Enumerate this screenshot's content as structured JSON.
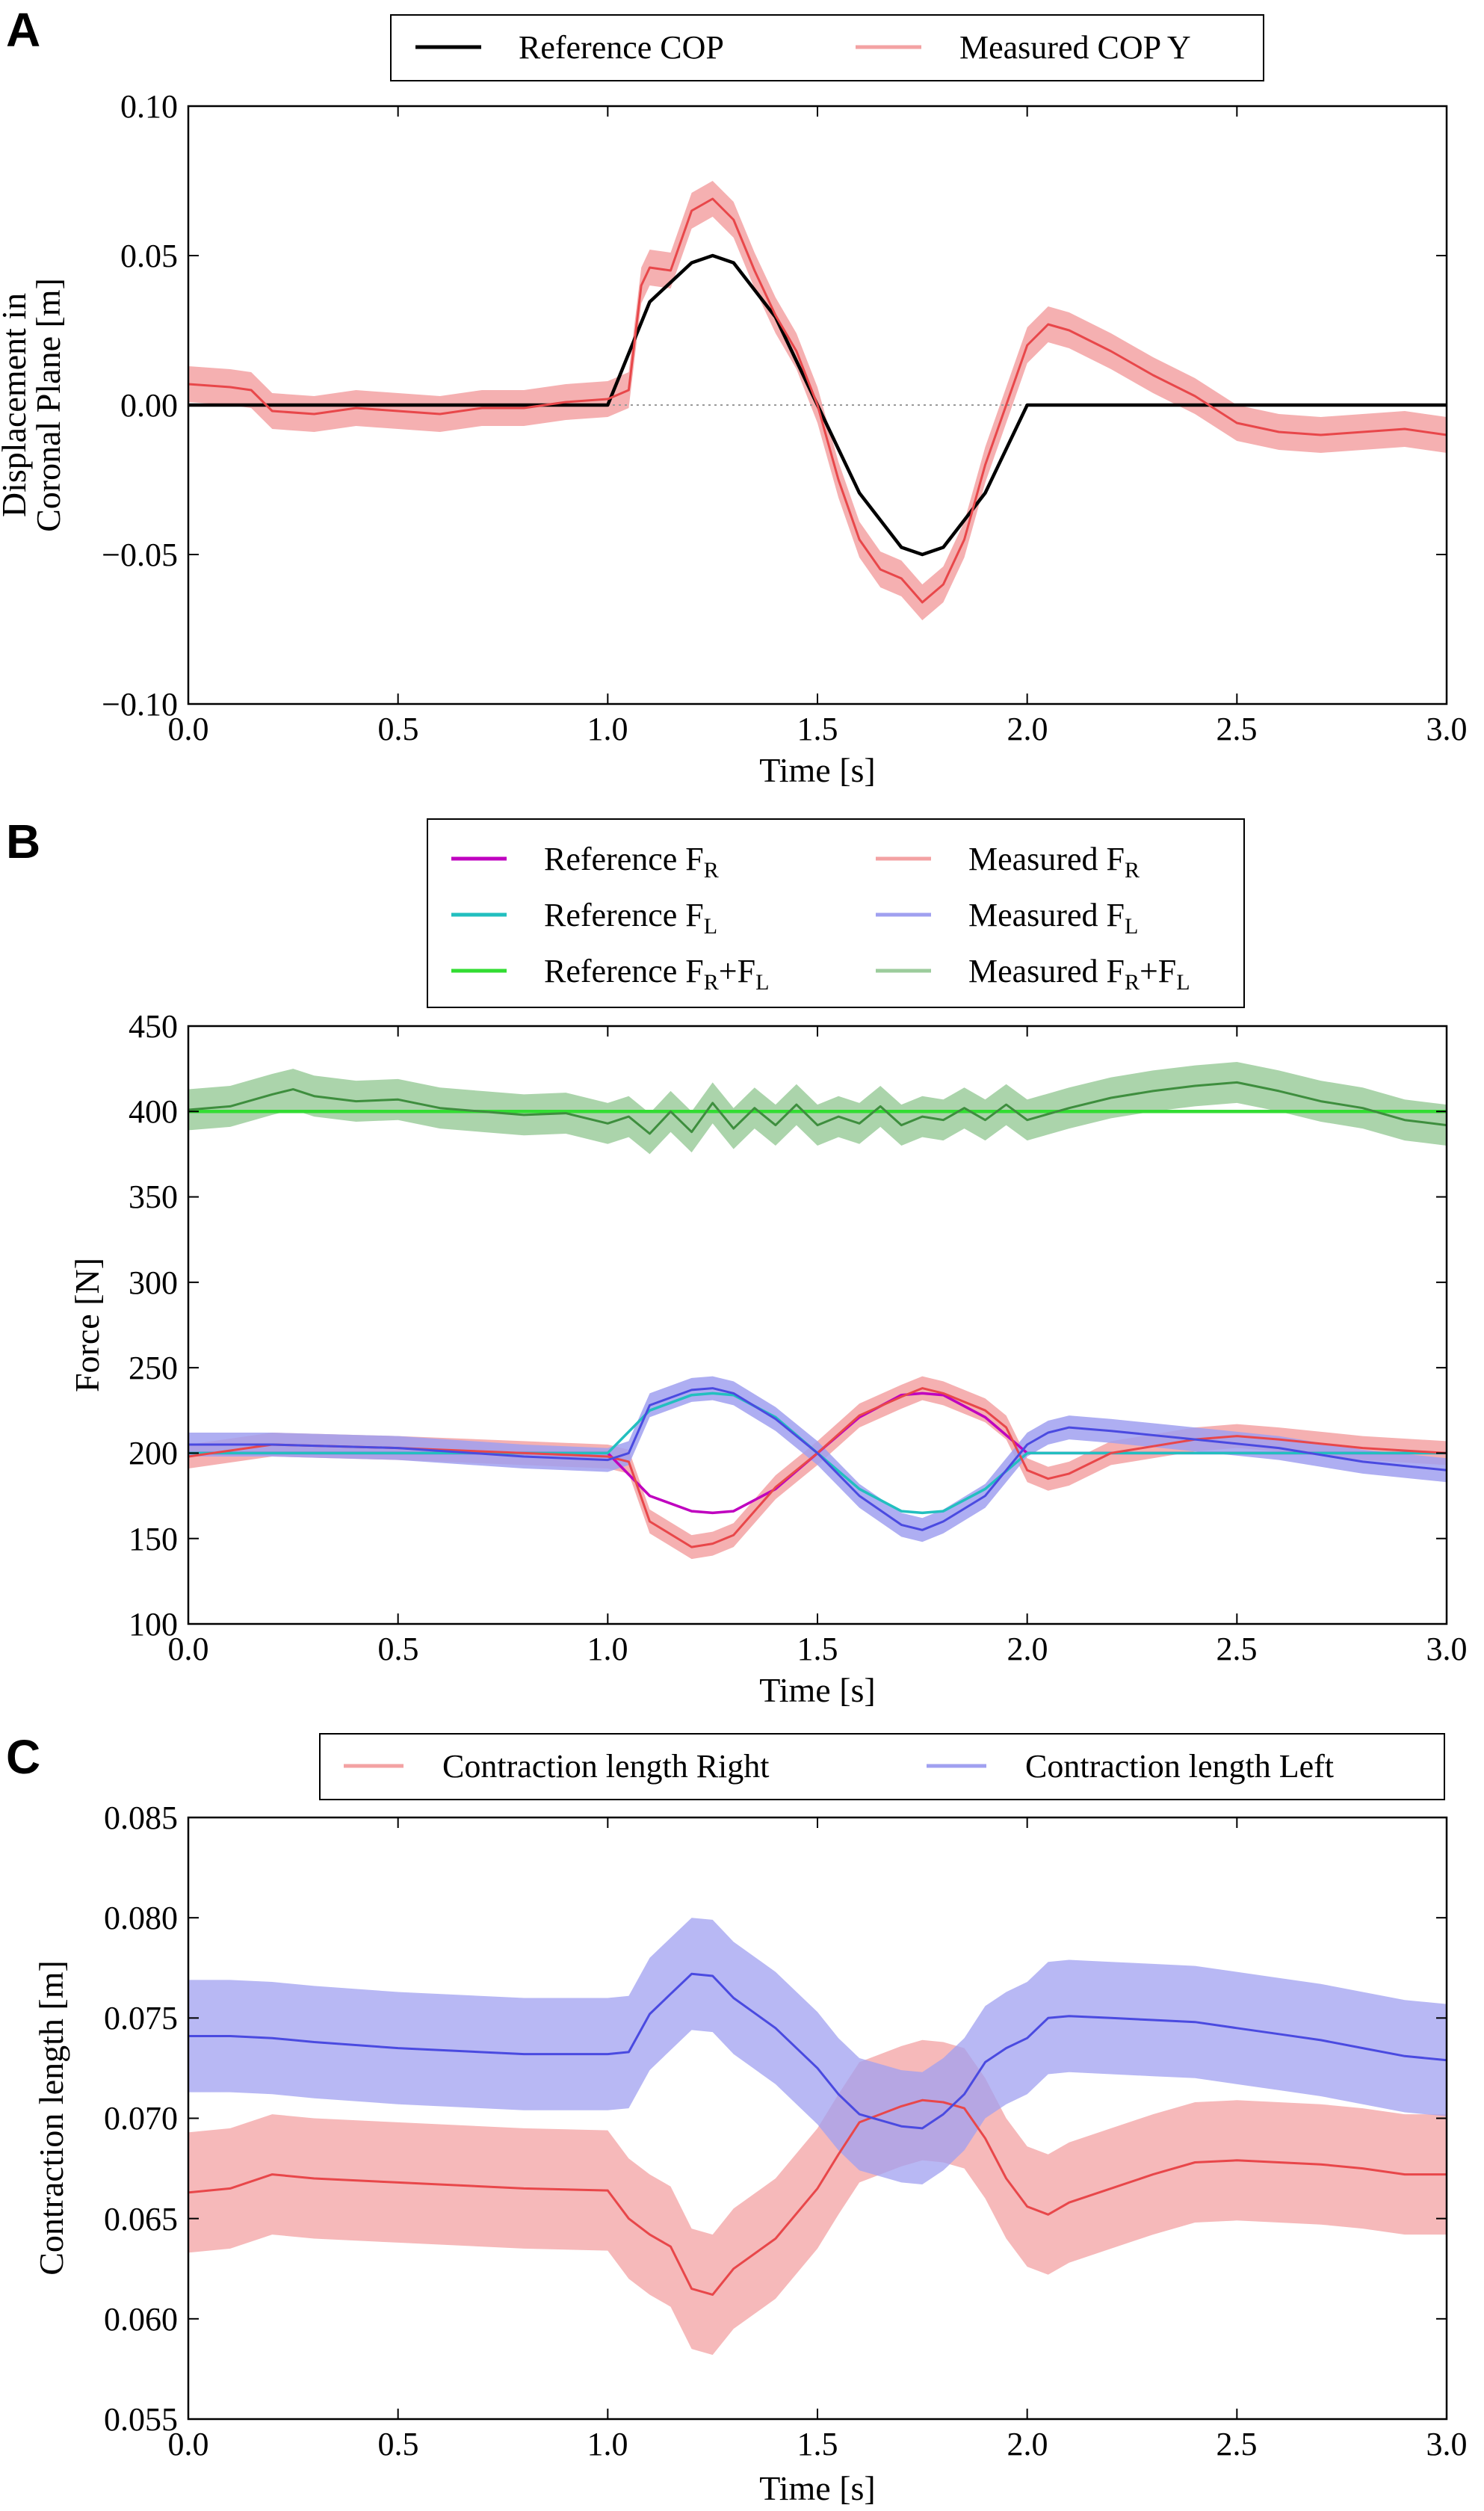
{
  "panels": [
    {
      "letter": "A",
      "xlabel": "Time [s]",
      "ylabel_lines": [
        "Displacement in",
        "Coronal Plane [m]"
      ],
      "x_ticks": [
        "0.0",
        "0.5",
        "1.0",
        "1.5",
        "2.0",
        "2.5",
        "3.0"
      ],
      "y_ticks": [
        "−0.10",
        "−0.05",
        "0.00",
        "0.05",
        "0.10"
      ],
      "legend": [
        {
          "label": "Reference COP",
          "sub": "",
          "suffix": ""
        },
        {
          "label": "Measured COP Y",
          "sub": "",
          "suffix": ""
        }
      ]
    },
    {
      "letter": "B",
      "xlabel": "Time [s]",
      "ylabel_lines": [
        "Force [N]"
      ],
      "x_ticks": [
        "0.0",
        "0.5",
        "1.0",
        "1.5",
        "2.0",
        "2.5",
        "3.0"
      ],
      "y_ticks": [
        "100",
        "150",
        "200",
        "250",
        "300",
        "350",
        "400",
        "450"
      ],
      "legend": [
        {
          "label": "Reference F",
          "sub": "R",
          "suffix": ""
        },
        {
          "label": "Reference F",
          "sub": "L",
          "suffix": ""
        },
        {
          "label": "Reference F",
          "sub": "R",
          "suffix": "+F",
          "sub2": "L"
        },
        {
          "label": "Measured F",
          "sub": "R",
          "suffix": ""
        },
        {
          "label": "Measured F",
          "sub": "L",
          "suffix": ""
        },
        {
          "label": "Measured F",
          "sub": "R",
          "suffix": "+F",
          "sub2": "L"
        }
      ]
    },
    {
      "letter": "C",
      "xlabel": "Time [s]",
      "ylabel_lines": [
        "Contraction length [m]"
      ],
      "x_ticks": [
        "0.0",
        "0.5",
        "1.0",
        "1.5",
        "2.0",
        "2.5",
        "3.0"
      ],
      "y_ticks": [
        "0.055",
        "0.060",
        "0.065",
        "0.070",
        "0.075",
        "0.080",
        "0.085"
      ],
      "legend": [
        {
          "label": "Contraction length Right",
          "sub": "",
          "suffix": ""
        },
        {
          "label": "Contraction length Left",
          "sub": "",
          "suffix": ""
        }
      ]
    }
  ],
  "colors": {
    "reference_cop": "#000000",
    "measured_red": "#e8474a",
    "measured_red_band": "#f3a2a3",
    "ref_fr": "#bf00bf",
    "ref_fl": "#22bfbf",
    "ref_sum": "#33dd33",
    "meas_fl": "#4a4ae0",
    "meas_fl_band": "#a0a0f0",
    "meas_sum": "#3e8e3e",
    "meas_sum_band": "#9ccc9c"
  },
  "chart_data": [
    {
      "type": "line",
      "panel": "A",
      "xlabel": "Time [s]",
      "ylabel": "Displacement in Coronal Plane [m]",
      "xlim": [
        0.0,
        3.0
      ],
      "ylim": [
        -0.1,
        0.1
      ],
      "zero_reference_line": true,
      "series": [
        {
          "name": "Reference COP",
          "x": [
            0.0,
            1.0,
            1.1,
            1.2,
            1.25,
            1.3,
            1.4,
            1.5,
            1.6,
            1.7,
            1.75,
            1.8,
            1.9,
            2.0,
            3.0
          ],
          "y": [
            0.0,
            0.0,
            0.0345,
            0.0476,
            0.05,
            0.0476,
            0.0294,
            0.0,
            -0.0294,
            -0.0476,
            -0.05,
            -0.0476,
            -0.0294,
            0.0,
            0.0
          ]
        },
        {
          "name": "Measured COP Y",
          "band": 0.006,
          "x": [
            0.0,
            0.1,
            0.15,
            0.2,
            0.3,
            0.4,
            0.5,
            0.6,
            0.7,
            0.8,
            0.9,
            1.0,
            1.05,
            1.08,
            1.1,
            1.15,
            1.2,
            1.25,
            1.3,
            1.35,
            1.4,
            1.45,
            1.5,
            1.55,
            1.6,
            1.65,
            1.7,
            1.75,
            1.8,
            1.85,
            1.9,
            1.95,
            2.0,
            2.05,
            2.1,
            2.2,
            2.3,
            2.4,
            2.5,
            2.6,
            2.7,
            2.8,
            2.9,
            3.0
          ],
          "y": [
            0.007,
            0.006,
            0.005,
            -0.002,
            -0.003,
            -0.001,
            -0.002,
            -0.003,
            -0.001,
            -0.001,
            0.001,
            0.002,
            0.005,
            0.04,
            0.046,
            0.045,
            0.065,
            0.069,
            0.062,
            0.045,
            0.03,
            0.018,
            0.0,
            -0.025,
            -0.045,
            -0.055,
            -0.058,
            -0.066,
            -0.06,
            -0.045,
            -0.02,
            0.0,
            0.02,
            0.027,
            0.025,
            0.018,
            0.01,
            0.003,
            -0.006,
            -0.009,
            -0.01,
            -0.009,
            -0.008,
            -0.01
          ]
        }
      ]
    },
    {
      "type": "line",
      "panel": "B",
      "xlabel": "Time [s]",
      "ylabel": "Force [N]",
      "xlim": [
        0.0,
        3.0
      ],
      "ylim": [
        100,
        450
      ],
      "series": [
        {
          "name": "Reference FR",
          "x": [
            0.0,
            1.0,
            1.1,
            1.2,
            1.25,
            1.3,
            1.4,
            1.5,
            1.6,
            1.7,
            1.75,
            1.8,
            1.9,
            2.0,
            3.0
          ],
          "y": [
            200,
            200,
            175,
            166,
            165,
            166,
            179,
            200,
            221,
            234,
            235,
            234,
            221,
            200,
            200
          ]
        },
        {
          "name": "Reference FL",
          "x": [
            0.0,
            1.0,
            1.1,
            1.2,
            1.25,
            1.3,
            1.4,
            1.5,
            1.6,
            1.7,
            1.75,
            1.8,
            1.9,
            2.0,
            3.0
          ],
          "y": [
            200,
            200,
            225,
            234,
            235,
            234,
            221,
            200,
            179,
            166,
            165,
            166,
            179,
            200,
            200
          ]
        },
        {
          "name": "Reference FR+FL",
          "x": [
            0.0,
            3.0
          ],
          "y": [
            400,
            400
          ]
        },
        {
          "name": "Measured FR",
          "band": 7,
          "x": [
            0.0,
            0.2,
            0.5,
            0.8,
            1.0,
            1.05,
            1.1,
            1.2,
            1.25,
            1.3,
            1.4,
            1.5,
            1.6,
            1.7,
            1.75,
            1.8,
            1.9,
            1.95,
            2.0,
            2.05,
            2.1,
            2.2,
            2.4,
            2.5,
            2.6,
            2.8,
            3.0
          ],
          "y": [
            198,
            205,
            203,
            200,
            198,
            195,
            160,
            145,
            147,
            152,
            180,
            200,
            222,
            233,
            238,
            235,
            225,
            215,
            190,
            185,
            188,
            200,
            208,
            210,
            208,
            203,
            200
          ]
        },
        {
          "name": "Measured FL",
          "band": 7,
          "x": [
            0.0,
            0.2,
            0.5,
            0.8,
            1.0,
            1.05,
            1.1,
            1.2,
            1.25,
            1.3,
            1.4,
            1.5,
            1.6,
            1.7,
            1.75,
            1.8,
            1.9,
            1.95,
            2.0,
            2.05,
            2.1,
            2.2,
            2.4,
            2.6,
            2.8,
            3.0
          ],
          "y": [
            205,
            205,
            203,
            198,
            196,
            200,
            228,
            237,
            238,
            235,
            220,
            200,
            175,
            158,
            155,
            160,
            175,
            190,
            205,
            212,
            215,
            213,
            208,
            203,
            195,
            190
          ]
        },
        {
          "name": "Measured FR+FL",
          "band": 12,
          "x": [
            0.0,
            0.1,
            0.2,
            0.25,
            0.3,
            0.4,
            0.5,
            0.6,
            0.7,
            0.8,
            0.9,
            1.0,
            1.05,
            1.1,
            1.15,
            1.2,
            1.25,
            1.3,
            1.35,
            1.4,
            1.45,
            1.5,
            1.55,
            1.6,
            1.65,
            1.7,
            1.75,
            1.8,
            1.85,
            1.9,
            1.95,
            2.0,
            2.1,
            2.2,
            2.3,
            2.4,
            2.5,
            2.6,
            2.7,
            2.8,
            2.9,
            3.0
          ],
          "y": [
            401,
            403,
            410,
            413,
            409,
            406,
            407,
            402,
            400,
            398,
            399,
            393,
            397,
            387,
            400,
            388,
            405,
            390,
            402,
            392,
            404,
            392,
            397,
            393,
            403,
            392,
            397,
            395,
            402,
            395,
            404,
            395,
            402,
            408,
            412,
            415,
            417,
            412,
            406,
            402,
            395,
            392
          ]
        }
      ]
    },
    {
      "type": "line",
      "panel": "C",
      "xlabel": "Time [s]",
      "ylabel": "Contraction length [m]",
      "xlim": [
        0.0,
        3.0
      ],
      "ylim": [
        0.055,
        0.085
      ],
      "series": [
        {
          "name": "Contraction length Right",
          "band": 0.003,
          "x": [
            0.0,
            0.1,
            0.2,
            0.3,
            0.5,
            0.8,
            1.0,
            1.05,
            1.1,
            1.15,
            1.2,
            1.25,
            1.3,
            1.4,
            1.5,
            1.55,
            1.6,
            1.7,
            1.75,
            1.8,
            1.85,
            1.9,
            1.95,
            2.0,
            2.05,
            2.1,
            2.2,
            2.3,
            2.4,
            2.5,
            2.6,
            2.7,
            2.8,
            2.9,
            3.0
          ],
          "y": [
            0.0663,
            0.0665,
            0.0672,
            0.067,
            0.0668,
            0.0665,
            0.0664,
            0.065,
            0.0642,
            0.0636,
            0.0615,
            0.0612,
            0.0625,
            0.064,
            0.0665,
            0.0682,
            0.0698,
            0.0706,
            0.0709,
            0.0708,
            0.0705,
            0.069,
            0.067,
            0.0656,
            0.0652,
            0.0658,
            0.0665,
            0.0672,
            0.0678,
            0.0679,
            0.0678,
            0.0677,
            0.0675,
            0.0672,
            0.0672
          ]
        },
        {
          "name": "Contraction length Left",
          "band": 0.0028,
          "x": [
            0.0,
            0.1,
            0.2,
            0.3,
            0.5,
            0.8,
            1.0,
            1.05,
            1.1,
            1.15,
            1.2,
            1.25,
            1.3,
            1.4,
            1.5,
            1.55,
            1.6,
            1.7,
            1.75,
            1.8,
            1.85,
            1.9,
            1.95,
            2.0,
            2.05,
            2.1,
            2.2,
            2.3,
            2.4,
            2.5,
            2.6,
            2.7,
            2.8,
            2.9,
            3.0
          ],
          "y": [
            0.0741,
            0.0741,
            0.074,
            0.0738,
            0.0735,
            0.0732,
            0.0732,
            0.0733,
            0.0752,
            0.0762,
            0.0772,
            0.0771,
            0.076,
            0.0745,
            0.0725,
            0.0712,
            0.0702,
            0.0696,
            0.0695,
            0.0702,
            0.0712,
            0.0728,
            0.0735,
            0.074,
            0.075,
            0.0751,
            0.075,
            0.0749,
            0.0748,
            0.0745,
            0.0742,
            0.0739,
            0.0735,
            0.0731,
            0.0729
          ]
        }
      ]
    }
  ]
}
